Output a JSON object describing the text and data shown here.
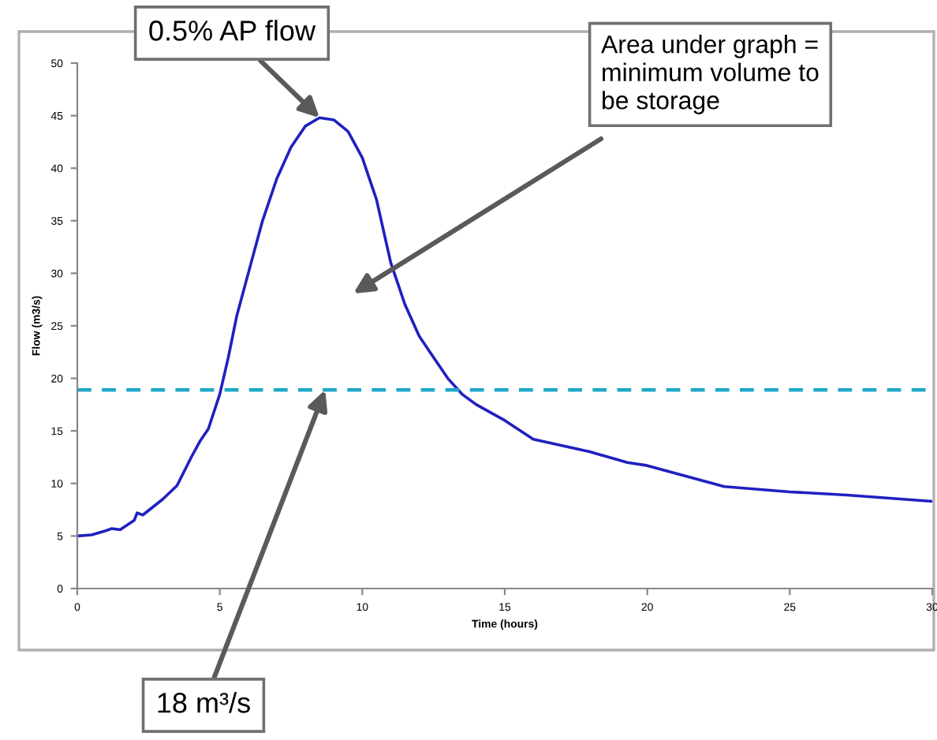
{
  "chart_data": {
    "type": "line",
    "xlabel": "Time (hours)",
    "ylabel": "Flow (m3/s)",
    "x": [
      0,
      0.5,
      1,
      1.2,
      1.5,
      2,
      2.1,
      2.3,
      3,
      3.5,
      4,
      4.3,
      4.6,
      5,
      5.3,
      5.6,
      6,
      6.5,
      7,
      7.5,
      8,
      8.5,
      9,
      9.5,
      10,
      10.5,
      11,
      11.5,
      12,
      12.5,
      13,
      13.5,
      14,
      15,
      16,
      18,
      19.3,
      20,
      22.7,
      25,
      27,
      30
    ],
    "series": [
      {
        "color": "#2020c0",
        "values": [
          5,
          5.1,
          5.5,
          5.7,
          5.6,
          6.5,
          7.2,
          7,
          8.5,
          9.8,
          12.5,
          14,
          15.2,
          18.5,
          22,
          26,
          30,
          35,
          39,
          42,
          44,
          44.8,
          44.6,
          43.5,
          41,
          37,
          31,
          27,
          24,
          22,
          20,
          18.5,
          17.5,
          16,
          14.2,
          13,
          12,
          11.7,
          9.7,
          9.2,
          8.9,
          8.3
        ]
      }
    ],
    "xlim": [
      0,
      30
    ],
    "xticks": [
      0,
      5,
      10,
      15,
      20,
      25,
      30
    ],
    "ylim": [
      0,
      50
    ],
    "yticks": [
      0,
      5,
      10,
      15,
      20,
      25,
      30,
      35,
      40,
      45,
      50
    ],
    "grid": false,
    "legend": false,
    "marker": "none",
    "line_style": "solid",
    "ref_lines": [
      {
        "axis": "y",
        "value": 18.9,
        "color": "#1fa8c8",
        "line_style": "dashed"
      }
    ],
    "annotations": [
      {
        "text": "0.5% AP flow",
        "x": 8.5,
        "y": 44.8
      },
      "Area under graph =\nminimum volume to\nbe storage",
      {
        "text": "18 m³/s",
        "x": 8.7,
        "y": 18.9
      }
    ]
  }
}
